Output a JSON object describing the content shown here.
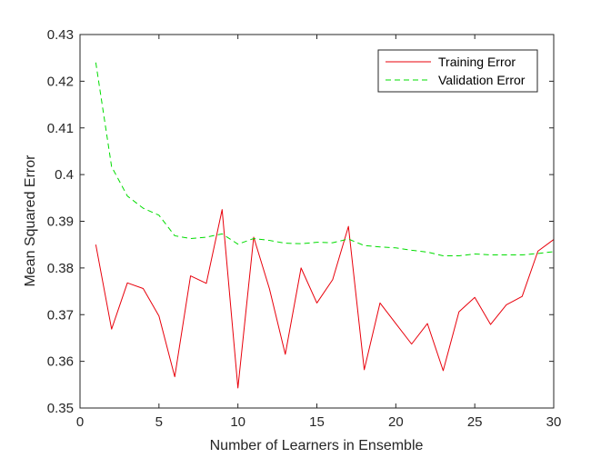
{
  "chart_data": {
    "type": "line",
    "title": "",
    "xlabel": "Number of Learners in Ensemble",
    "ylabel": "Mean Squared Error",
    "xlim": [
      0,
      30
    ],
    "ylim": [
      0.35,
      0.43
    ],
    "x_ticks": [
      0,
      5,
      10,
      15,
      20,
      25,
      30
    ],
    "x_tick_labels": [
      "0",
      "5",
      "10",
      "15",
      "20",
      "25",
      "30"
    ],
    "y_ticks": [
      0.35,
      0.36,
      0.37,
      0.38,
      0.39,
      0.4,
      0.41,
      0.42,
      0.43
    ],
    "y_tick_labels": [
      "0.35",
      "0.36",
      "0.37",
      "0.38",
      "0.39",
      "0.4",
      "0.41",
      "0.42",
      "0.43"
    ],
    "grid": false,
    "legend_position": "top-right",
    "x": [
      1,
      2,
      3,
      4,
      5,
      6,
      7,
      8,
      9,
      10,
      11,
      12,
      13,
      14,
      15,
      16,
      17,
      18,
      19,
      20,
      21,
      22,
      23,
      24,
      25,
      26,
      27,
      28,
      29,
      30
    ],
    "series": [
      {
        "name": "Training Error",
        "color": "#e8000b",
        "style": "solid",
        "values": [
          0.385,
          0.3669,
          0.3768,
          0.3756,
          0.3697,
          0.3567,
          0.3783,
          0.3767,
          0.3925,
          0.3543,
          0.3866,
          0.3755,
          0.3615,
          0.38,
          0.3725,
          0.3775,
          0.3889,
          0.3582,
          0.3725,
          0.3681,
          0.3637,
          0.3681,
          0.358,
          0.3706,
          0.3737,
          0.3679,
          0.3721,
          0.3739,
          0.3836,
          0.3861
        ]
      },
      {
        "name": "Validation Error",
        "color": "#00dc00",
        "style": "dashed",
        "values": [
          0.424,
          0.4017,
          0.3954,
          0.3928,
          0.3913,
          0.3869,
          0.3863,
          0.3866,
          0.3873,
          0.3851,
          0.3863,
          0.3859,
          0.3853,
          0.3852,
          0.3855,
          0.3854,
          0.3862,
          0.3848,
          0.3845,
          0.3843,
          0.3838,
          0.3834,
          0.3826,
          0.3826,
          0.383,
          0.3828,
          0.3828,
          0.3828,
          0.3831,
          0.3835
        ]
      }
    ]
  }
}
